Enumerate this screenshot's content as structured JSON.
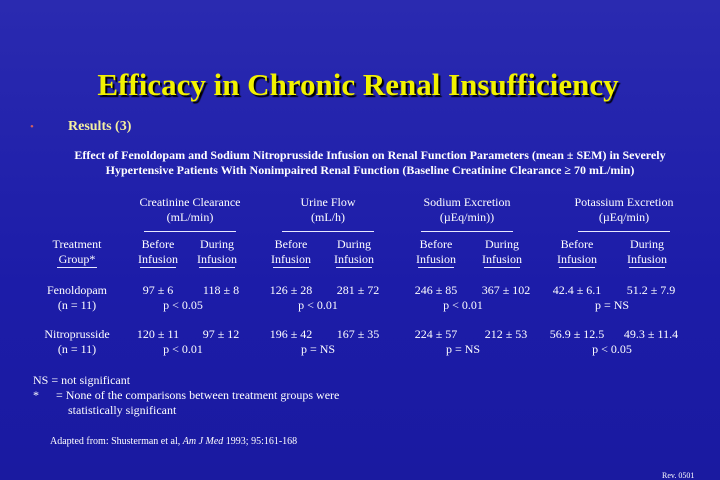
{
  "header": {
    "title": "Efficacy in Chronic Renal Insufficiency"
  },
  "bullet": {
    "marker": "•",
    "text": "Results (3)"
  },
  "caption": [
    "Effect of Fenoldopam and Sodium Nitroprusside Infusion on Renal Function Parameters (mean ± SEM) in Severely",
    "Hypertensive Patients With Nonimpaired Renal Function (Baseline Creatinine Clearance ≥ 70 mL/min)"
  ],
  "table": {
    "groups": [
      [
        "Creatinine Clearance",
        "(mL/min)"
      ],
      [
        "Urine Flow",
        "(mL/h)"
      ],
      [
        "Sodium Excretion",
        "(µEq/min))"
      ],
      [
        "Potassium Excretion",
        "(µEq/min)"
      ]
    ],
    "row_header": [
      "Treatment",
      "Group*"
    ],
    "subheaders": [
      [
        "Before",
        "Infusion"
      ],
      [
        "During",
        "Infusion"
      ]
    ],
    "rows": [
      {
        "group": [
          "Fenoldopam",
          "(n = 11)"
        ],
        "cells": [
          [
            "97 ± 6",
            "118 ± 8",
            "p < 0.05"
          ],
          [
            "126 ± 28",
            "281 ± 72",
            "p < 0.01"
          ],
          [
            "246 ± 85",
            "367 ± 102",
            "p < 0.01"
          ],
          [
            "42.4 ± 6.1",
            "51.2 ± 7.9",
            "p = NS"
          ]
        ]
      },
      {
        "group": [
          "Nitroprusside",
          "(n = 11)"
        ],
        "cells": [
          [
            "120 ± 11",
            "97 ± 12",
            "p < 0.01"
          ],
          [
            "196 ± 42",
            "167 ± 35",
            "p = NS"
          ],
          [
            "224 ± 57",
            "212 ± 53",
            "p = NS"
          ],
          [
            "56.9 ± 12.5",
            "49.3 ± 11.4",
            "p < 0.05"
          ]
        ]
      }
    ]
  },
  "footnotes": {
    "ns": "NS = not significant",
    "star_marker": "*",
    "star_text": [
      "= None of the comparisons between treatment groups were",
      "statistically significant"
    ]
  },
  "source": {
    "prefix": "Adapted from: Shusterman et al, ",
    "journal": "Am J Med",
    "suffix": " 1993; 95:161-168"
  },
  "revision": "Rev. 0501"
}
